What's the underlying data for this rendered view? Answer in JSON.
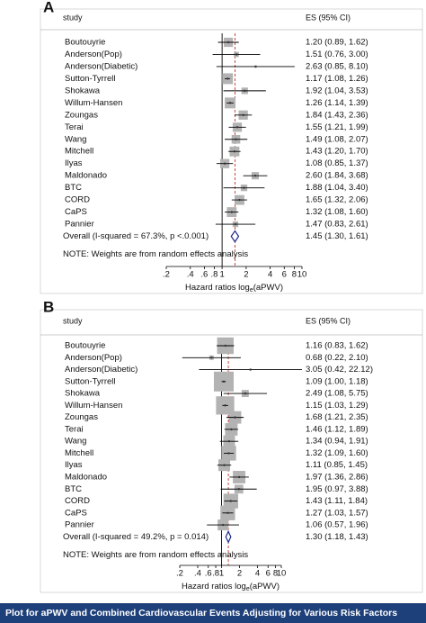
{
  "chart_data": [
    {
      "type": "forest",
      "panel": "A",
      "study_header": "study",
      "es_header": "ES (95% CI)",
      "studies": [
        "Boutouyrie",
        "Anderson(Pop)",
        "Anderson(Diabetic)",
        "Sutton-Tyrrell",
        "Shokawa",
        "Willum-Hansen",
        "Zoungas",
        "Terai",
        "Wang",
        "Mitchell",
        "Ilyas",
        "Maldonado",
        "BTC",
        "CORD",
        "CaPS",
        "Pannier"
      ],
      "values": [
        1.2,
        1.51,
        2.63,
        1.17,
        1.92,
        1.26,
        1.84,
        1.55,
        1.49,
        1.43,
        1.08,
        2.6,
        1.88,
        1.65,
        1.32,
        1.47
      ],
      "lower": [
        0.89,
        0.76,
        0.85,
        1.08,
        1.04,
        1.14,
        1.43,
        1.21,
        1.08,
        1.2,
        0.85,
        1.84,
        1.04,
        1.32,
        1.08,
        0.83
      ],
      "upper": [
        1.62,
        3.0,
        8.1,
        1.26,
        3.53,
        1.39,
        2.36,
        1.99,
        2.07,
        1.7,
        1.37,
        3.68,
        3.4,
        2.06,
        1.6,
        2.61
      ],
      "value_labels": [
        "1.20 (0.89, 1.62)",
        "1.51 (0.76, 3.00)",
        "2.63 (0.85, 8.10)",
        "1.17 (1.08, 1.26)",
        "1.92 (1.04, 3.53)",
        "1.26 (1.14, 1.39)",
        "1.84 (1.43, 2.36)",
        "1.55 (1.21, 1.99)",
        "1.49 (1.08, 2.07)",
        "1.43 (1.20, 1.70)",
        "1.08 (0.85, 1.37)",
        "2.60 (1.84, 3.68)",
        "1.88 (1.04, 3.40)",
        "1.65 (1.32, 2.06)",
        "1.32 (1.08, 1.60)",
        "1.47 (0.83, 2.61)"
      ],
      "weights": [
        8,
        2.5,
        0.5,
        11,
        4,
        11,
        8,
        8,
        7,
        9,
        8,
        5,
        4,
        9,
        9,
        3
      ],
      "overall": {
        "label": "Overall  (I-squared = 67.3%, p <.0.001)",
        "value": 1.45,
        "lower": 1.3,
        "upper": 1.61,
        "value_label": "1.45 (1.30, 1.61)"
      },
      "note": "NOTE: Weights are from random effects analysis",
      "xlabel": "Hazard ratios log",
      "xlabel_sub": "e",
      "xlabel_tail": "(aPWV)",
      "log_x": true,
      "xlim": [
        0.2,
        10
      ],
      "xticks": [
        {
          "value": 0.2,
          "label": ".2"
        },
        {
          "value": 0.4,
          "label": ".4"
        },
        {
          "value": 0.6,
          "label": ".6"
        },
        {
          "value": 0.8,
          "label": ".8"
        },
        1,
        2,
        4,
        6,
        8,
        10
      ],
      "box_color": "#b3b3b3",
      "diamond_color": "#1f2a8a",
      "ref_color": "#c0392b"
    },
    {
      "type": "forest",
      "panel": "B",
      "study_header": "study",
      "es_header": "ES (95% CI)",
      "studies": [
        "Boutouyrie",
        "Anderson(Pop)",
        "Anderson(Diabetic)",
        "Sutton-Tyrrell",
        "Shokawa",
        "Willum-Hansen",
        "Zoungas",
        "Terai",
        "Wang",
        "Mitchell",
        "Ilyas",
        "Maldonado",
        "BTC",
        "CORD",
        "CaPS",
        "Pannier"
      ],
      "values": [
        1.16,
        0.68,
        3.05,
        1.09,
        2.49,
        1.15,
        1.68,
        1.46,
        1.34,
        1.32,
        1.11,
        1.97,
        1.95,
        1.43,
        1.27,
        1.06
      ],
      "lower": [
        0.83,
        0.22,
        0.42,
        1.0,
        1.08,
        1.03,
        1.21,
        1.12,
        0.94,
        1.09,
        0.85,
        1.36,
        0.97,
        1.11,
        1.03,
        0.57
      ],
      "upper": [
        1.62,
        2.1,
        22.12,
        1.18,
        5.75,
        1.29,
        2.35,
        1.89,
        1.91,
        1.6,
        1.45,
        2.86,
        3.88,
        1.84,
        1.57,
        1.96
      ],
      "value_labels": [
        "1.16 (0.83, 1.62)",
        "0.68 (0.22, 2.10)",
        "3.05 (0.42, 22.12)",
        "1.09 (1.00, 1.18)",
        "2.49 (1.08, 5.75)",
        "1.15 (1.03, 1.29)",
        "1.68 (1.21, 2.35)",
        "1.46 (1.12, 1.89)",
        "1.34 (0.94, 1.91)",
        "1.32 (1.09, 1.60)",
        "1.11 (0.85, 1.45)",
        "1.97 (1.36, 2.86)",
        "1.95 (0.97, 3.88)",
        "1.43 (1.11, 1.84)",
        "1.27 (1.03, 1.57)",
        "1.06 (0.57, 1.96)"
      ],
      "weights": [
        7,
        0.5,
        0.1,
        10,
        1.3,
        8.5,
        4,
        4,
        3.5,
        5.5,
        3.5,
        4,
        2,
        5.5,
        5.5,
        3
      ],
      "overall": {
        "label": "Overall  (I-squared = 49.2%, p = 0.014)",
        "value": 1.3,
        "lower": 1.18,
        "upper": 1.43,
        "value_label": "1.30 (1.18, 1.43)"
      },
      "note": "NOTE: Weights are from random effects analysis",
      "xlabel": "Hazard ratios log",
      "xlabel_sub": "e",
      "xlabel_tail": "(aPWV)",
      "log_x": true,
      "xlim": [
        0.2,
        10
      ],
      "xticks": [
        {
          "value": 0.2,
          "label": ".2"
        },
        {
          "value": 0.4,
          "label": ".4"
        },
        {
          "value": 0.6,
          "label": ".6"
        },
        {
          "value": 0.8,
          "label": ".8"
        },
        1,
        2,
        4,
        6,
        8,
        10
      ],
      "box_color": "#b3b3b3",
      "diamond_color": "#1f2a8a",
      "ref_color": "#c0392b"
    }
  ],
  "caption": "Plot for aPWV and Combined Cardiovascular Events Adjusting for Various Risk Factors"
}
